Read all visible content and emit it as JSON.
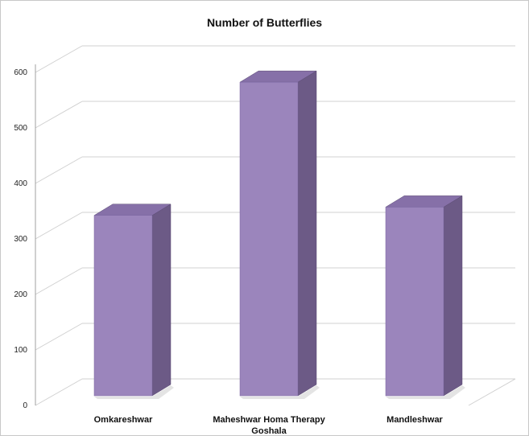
{
  "chart_data": {
    "type": "bar",
    "title": "Number of Butterflies",
    "xlabel": "",
    "ylabel": "",
    "categories": [
      "Omkareshwar",
      "Maheshwar Homa Therapy Goshala",
      "Mandleshwar"
    ],
    "category_lines": [
      [
        "Omkareshwar"
      ],
      [
        "Maheshwar Homa Therapy",
        "Goshala"
      ],
      [
        "Mandleshwar"
      ]
    ],
    "values": [
      325,
      565,
      340
    ],
    "ylim": [
      0,
      600
    ],
    "yticks": [
      "0",
      "100",
      "200",
      "300",
      "400",
      "500",
      "600"
    ],
    "style": "3d-column",
    "grid": true,
    "legend": "none",
    "colors": {
      "front": "#9b85bc",
      "side": "#6c5a86",
      "top": "#8670a8",
      "grid": "#d0d0d0",
      "axis": "#a0a0a0"
    }
  }
}
